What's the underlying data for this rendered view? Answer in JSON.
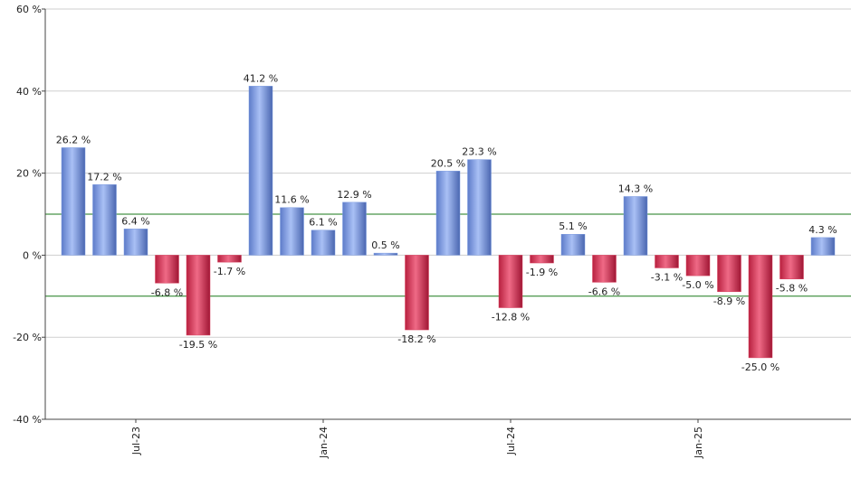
{
  "chart_data": {
    "type": "bar",
    "categories": [
      null,
      null,
      "Jul-23",
      null,
      null,
      null,
      null,
      null,
      "Jan-24",
      null,
      null,
      null,
      null,
      null,
      "Jul-24",
      null,
      null,
      null,
      null,
      null,
      "Jan-25",
      null,
      null,
      null,
      null
    ],
    "values": [
      26.2,
      17.2,
      6.4,
      -6.8,
      -19.5,
      -1.7,
      41.2,
      11.6,
      6.1,
      12.9,
      0.5,
      -18.2,
      20.5,
      23.3,
      -12.8,
      -1.9,
      5.1,
      -6.6,
      14.3,
      -3.1,
      -5.0,
      -8.9,
      -25.0,
      -5.8,
      4.3
    ],
    "value_labels": [
      "26.2 %",
      "17.2 %",
      "6.4 %",
      "-6.8 %",
      "-19.5 %",
      "-1.7 %",
      "41.2 %",
      "11.6 %",
      "6.1 %",
      "12.9 %",
      "0.5 %",
      "-18.2 %",
      "20.5 %",
      "23.3 %",
      "-12.8 %",
      "-1.9 %",
      "5.1 %",
      "-6.6 %",
      "14.3 %",
      "-3.1 %",
      "-5.0 %",
      "-8.9 %",
      "-25.0 %",
      "-5.8 %",
      "4.3 %"
    ],
    "positive_color": "#7b9be0",
    "negative_color": "#d8405f",
    "ylim": [
      -40,
      60
    ],
    "yticks": [
      {
        "value": -40,
        "label": "-40 %"
      },
      {
        "value": -20,
        "label": "-20 %"
      },
      {
        "value": 0,
        "label": "0 %"
      },
      {
        "value": 20,
        "label": "20 %"
      },
      {
        "value": 40,
        "label": "40 %"
      },
      {
        "value": 60,
        "label": "60 %"
      }
    ],
    "grid": true,
    "reference_lines": [
      10,
      -10
    ],
    "reference_color": "#1a7a1a"
  }
}
